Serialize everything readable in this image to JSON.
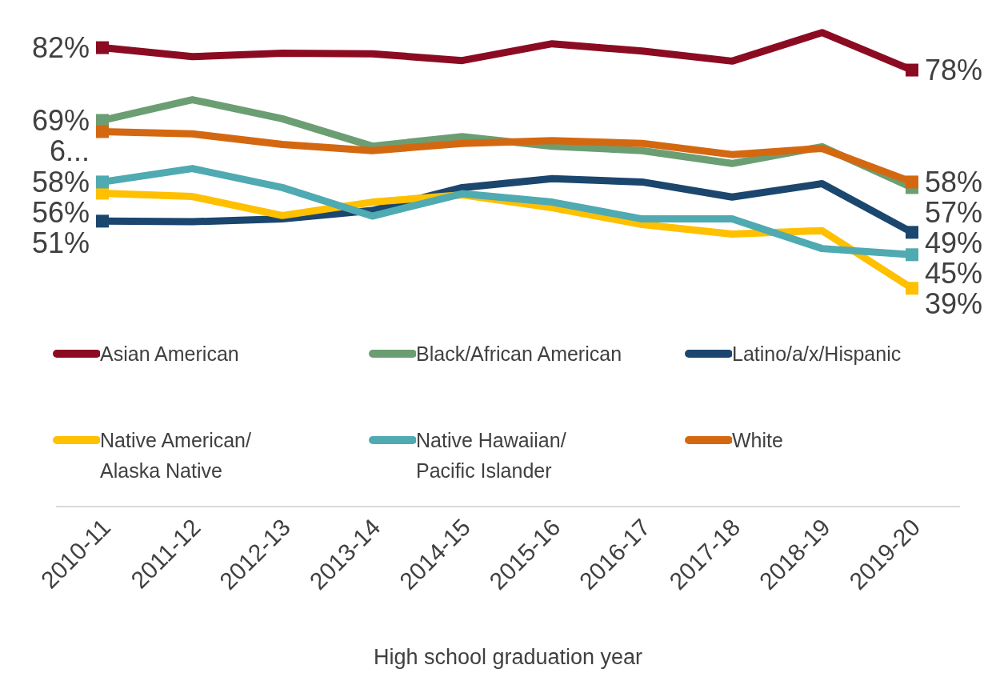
{
  "chart_data": {
    "type": "line",
    "xlabel": "High school graduation year",
    "categories": [
      "2010-11",
      "2011-12",
      "2012-13",
      "2013-14",
      "2014-15",
      "2015-16",
      "2016-17",
      "2017-18",
      "2018-19",
      "2019-20"
    ],
    "tick_labels": "x",
    "legend": "bottom",
    "line_style": "solid",
    "series": [
      {
        "name": "Asian American",
        "color": "#8b0c22",
        "values": [
          82,
          80.4,
          81,
          80.9,
          79.7,
          82.7,
          81.4,
          79.6,
          84.7,
          78
        ],
        "value_labels": [
          "82%",
          null,
          null,
          null,
          null,
          null,
          null,
          null,
          null,
          "78%"
        ]
      },
      {
        "name": "Black/African American",
        "color": "#6b9e72",
        "values": [
          69,
          72.7,
          69.3,
          64.4,
          66.1,
          64.4,
          63.6,
          61.3,
          64.3,
          57
        ],
        "value_labels": [
          "69%",
          null,
          null,
          null,
          null,
          null,
          null,
          null,
          null,
          "57%"
        ]
      },
      {
        "name": "Latino/a/x/Hispanic",
        "color": "#1b466e",
        "values": [
          51,
          50.9,
          51.4,
          52.9,
          57,
          58.6,
          58,
          55.3,
          57.7,
          49
        ],
        "value_labels": [
          "51%",
          null,
          null,
          null,
          null,
          null,
          null,
          null,
          null,
          "49%"
        ]
      },
      {
        "name": "Native American/ Alaska Native",
        "color": "#ffc000",
        "values": [
          56,
          55.4,
          52,
          54.4,
          55.7,
          53.4,
          50.4,
          48.7,
          49.3,
          39
        ],
        "value_labels": [
          "56%",
          null,
          null,
          null,
          null,
          null,
          null,
          null,
          null,
          "39%"
        ]
      },
      {
        "name": "Native Hawaiian/ Pacific Islander",
        "color": "#4faab1",
        "values": [
          58,
          60.4,
          57,
          51.9,
          55.9,
          54.4,
          51.4,
          51.4,
          46.1,
          45
        ],
        "value_labels": [
          "58%",
          null,
          null,
          null,
          null,
          null,
          null,
          null,
          null,
          "45%"
        ]
      },
      {
        "name": "White",
        "color": "#d46811",
        "values": [
          67,
          66.6,
          64.7,
          63.6,
          64.9,
          65.4,
          64.9,
          62.9,
          64,
          58
        ],
        "value_labels": [
          "6...",
          null,
          null,
          null,
          null,
          null,
          null,
          null,
          null,
          "58%"
        ]
      }
    ]
  }
}
